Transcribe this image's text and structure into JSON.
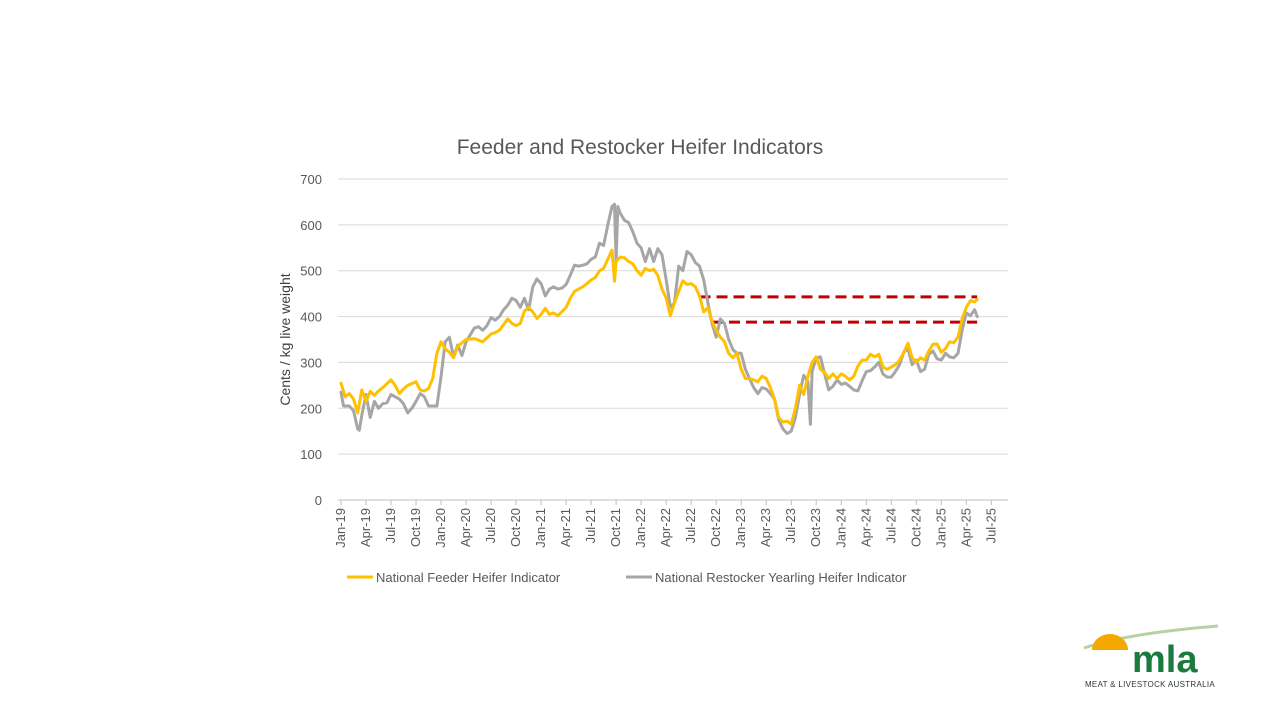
{
  "chart_data": {
    "type": "line",
    "title": "Feeder and Restocker Heifer Indicators",
    "xlabel": "",
    "ylabel": "Cents / kg  live weight",
    "ylim": [
      0,
      700
    ],
    "yticks": [
      0,
      100,
      200,
      300,
      400,
      500,
      600,
      700
    ],
    "x_tick_labels": [
      "Jan-19",
      "Apr-19",
      "Jul-19",
      "Oct-19",
      "Jan-20",
      "Apr-20",
      "Jul-20",
      "Oct-20",
      "Jan-21",
      "Apr-21",
      "Jul-21",
      "Oct-21",
      "Jan-22",
      "Apr-22",
      "Jul-22",
      "Oct-22",
      "Jan-23",
      "Apr-23",
      "Jul-23",
      "Oct-23",
      "Jan-24",
      "Apr-24",
      "Jul-24",
      "Oct-24",
      "Jan-25",
      "Apr-25",
      "Jul-25"
    ],
    "x_range_months": [
      0,
      80
    ],
    "grid": true,
    "legend_position": "bottom",
    "series": [
      {
        "name": "National Feeder Heifer Indicator",
        "color": "#FFC000",
        "points": [
          [
            0,
            255
          ],
          [
            0.5,
            225
          ],
          [
            1,
            232
          ],
          [
            1.5,
            220
          ],
          [
            2,
            190
          ],
          [
            2.5,
            240
          ],
          [
            3,
            215
          ],
          [
            3.5,
            237
          ],
          [
            4,
            228
          ],
          [
            4.5,
            238
          ],
          [
            5,
            245
          ],
          [
            6,
            262
          ],
          [
            6.5,
            250
          ],
          [
            7,
            232
          ],
          [
            7.5,
            242
          ],
          [
            8,
            250
          ],
          [
            9,
            258
          ],
          [
            9.5,
            240
          ],
          [
            10,
            238
          ],
          [
            10.5,
            243
          ],
          [
            11,
            265
          ],
          [
            11.5,
            320
          ],
          [
            12,
            345
          ],
          [
            12.5,
            330
          ],
          [
            13,
            322
          ],
          [
            13.5,
            310
          ],
          [
            14,
            335
          ],
          [
            15,
            350
          ],
          [
            16,
            352
          ],
          [
            17,
            345
          ],
          [
            18,
            362
          ],
          [
            18.5,
            365
          ],
          [
            19,
            370
          ],
          [
            20,
            395
          ],
          [
            20.5,
            385
          ],
          [
            21,
            380
          ],
          [
            21.5,
            385
          ],
          [
            22,
            412
          ],
          [
            22.5,
            420
          ],
          [
            23,
            410
          ],
          [
            23.5,
            396
          ],
          [
            24,
            405
          ],
          [
            24.5,
            418
          ],
          [
            25,
            405
          ],
          [
            25.5,
            408
          ],
          [
            26,
            402
          ],
          [
            27,
            420
          ],
          [
            27.5,
            440
          ],
          [
            28,
            455
          ],
          [
            28.5,
            460
          ],
          [
            29,
            465
          ],
          [
            29.5,
            472
          ],
          [
            30,
            480
          ],
          [
            30.5,
            485
          ],
          [
            31,
            500
          ],
          [
            31.5,
            505
          ],
          [
            32,
            525
          ],
          [
            32.5,
            545
          ],
          [
            32.8,
            477
          ],
          [
            33,
            520
          ],
          [
            33.5,
            530
          ],
          [
            34,
            528
          ],
          [
            34.5,
            520
          ],
          [
            35,
            515
          ],
          [
            35.5,
            500
          ],
          [
            36,
            490
          ],
          [
            36.5,
            505
          ],
          [
            37,
            500
          ],
          [
            37.5,
            503
          ],
          [
            38,
            490
          ],
          [
            38.5,
            460
          ],
          [
            39,
            440
          ],
          [
            39.5,
            402
          ],
          [
            40,
            430
          ],
          [
            40.5,
            455
          ],
          [
            41,
            478
          ],
          [
            41.5,
            470
          ],
          [
            42,
            472
          ],
          [
            42.5,
            465
          ],
          [
            43,
            445
          ],
          [
            43.5,
            410
          ],
          [
            44,
            420
          ],
          [
            44.5,
            390
          ],
          [
            45,
            370
          ],
          [
            45.5,
            355
          ],
          [
            46,
            345
          ],
          [
            46.5,
            320
          ],
          [
            47,
            310
          ],
          [
            47.5,
            320
          ],
          [
            48,
            285
          ],
          [
            48.5,
            265
          ],
          [
            49,
            265
          ],
          [
            49.5,
            262
          ],
          [
            50,
            258
          ],
          [
            50.5,
            270
          ],
          [
            51,
            265
          ],
          [
            51.5,
            245
          ],
          [
            52,
            220
          ],
          [
            52.5,
            180
          ],
          [
            53,
            170
          ],
          [
            53.5,
            172
          ],
          [
            54,
            165
          ],
          [
            54.5,
            200
          ],
          [
            55,
            250
          ],
          [
            55.5,
            230
          ],
          [
            56,
            270
          ],
          [
            56.5,
            300
          ],
          [
            57,
            312
          ],
          [
            57.5,
            285
          ],
          [
            58,
            278
          ],
          [
            58.5,
            265
          ],
          [
            59,
            275
          ],
          [
            59.5,
            265
          ],
          [
            60,
            275
          ],
          [
            60.5,
            270
          ],
          [
            61,
            262
          ],
          [
            61.5,
            270
          ],
          [
            62,
            292
          ],
          [
            62.5,
            305
          ],
          [
            63,
            305
          ],
          [
            63.5,
            318
          ],
          [
            64,
            312
          ],
          [
            64.5,
            318
          ],
          [
            65,
            290
          ],
          [
            65.5,
            285
          ],
          [
            66,
            290
          ],
          [
            66.5,
            295
          ],
          [
            67,
            305
          ],
          [
            67.5,
            322
          ],
          [
            68,
            342
          ],
          [
            68.5,
            310
          ],
          [
            69,
            300
          ],
          [
            69.5,
            310
          ],
          [
            70,
            305
          ],
          [
            70.5,
            325
          ],
          [
            71,
            340
          ],
          [
            71.5,
            340
          ],
          [
            72,
            322
          ],
          [
            72.5,
            330
          ],
          [
            73,
            345
          ],
          [
            73.5,
            343
          ],
          [
            74,
            355
          ],
          [
            74.5,
            395
          ],
          [
            75,
            420
          ],
          [
            75.5,
            435
          ],
          [
            76,
            432
          ],
          [
            76.3,
            437
          ]
        ]
      },
      {
        "name": "National Restocker Yearling Heifer Indicator",
        "color": "#A6A6A6",
        "points": [
          [
            0,
            235
          ],
          [
            0.3,
            205
          ],
          [
            1,
            205
          ],
          [
            1.5,
            195
          ],
          [
            2,
            155
          ],
          [
            2.2,
            152
          ],
          [
            2.5,
            185
          ],
          [
            3,
            230
          ],
          [
            3.5,
            180
          ],
          [
            4,
            215
          ],
          [
            4.5,
            200
          ],
          [
            5,
            210
          ],
          [
            5.5,
            212
          ],
          [
            6,
            230
          ],
          [
            6.5,
            225
          ],
          [
            7,
            220
          ],
          [
            7.5,
            210
          ],
          [
            8,
            190
          ],
          [
            8.5,
            200
          ],
          [
            9,
            215
          ],
          [
            9.5,
            232
          ],
          [
            10,
            225
          ],
          [
            10.5,
            205
          ],
          [
            11,
            205
          ],
          [
            11.5,
            205
          ],
          [
            12,
            270
          ],
          [
            12.5,
            345
          ],
          [
            13,
            355
          ],
          [
            13.5,
            312
          ],
          [
            14,
            338
          ],
          [
            14.5,
            315
          ],
          [
            15,
            345
          ],
          [
            15.5,
            360
          ],
          [
            16,
            375
          ],
          [
            16.5,
            378
          ],
          [
            17,
            370
          ],
          [
            17.5,
            380
          ],
          [
            18,
            398
          ],
          [
            18.5,
            392
          ],
          [
            19,
            400
          ],
          [
            19.5,
            415
          ],
          [
            20,
            425
          ],
          [
            20.5,
            440
          ],
          [
            21,
            435
          ],
          [
            21.5,
            420
          ],
          [
            22,
            440
          ],
          [
            22.5,
            415
          ],
          [
            23,
            465
          ],
          [
            23.5,
            482
          ],
          [
            24,
            472
          ],
          [
            24.5,
            445
          ],
          [
            25,
            460
          ],
          [
            25.5,
            465
          ],
          [
            26,
            460
          ],
          [
            26.5,
            462
          ],
          [
            27,
            470
          ],
          [
            27.5,
            490
          ],
          [
            28,
            512
          ],
          [
            28.5,
            510
          ],
          [
            29,
            512
          ],
          [
            29.5,
            515
          ],
          [
            30,
            525
          ],
          [
            30.5,
            530
          ],
          [
            31,
            560
          ],
          [
            31.5,
            555
          ],
          [
            32,
            600
          ],
          [
            32.5,
            640
          ],
          [
            32.8,
            645
          ],
          [
            33,
            520
          ],
          [
            33.2,
            640
          ],
          [
            33.5,
            625
          ],
          [
            34,
            610
          ],
          [
            34.5,
            605
          ],
          [
            35,
            585
          ],
          [
            35.5,
            560
          ],
          [
            36,
            550
          ],
          [
            36.5,
            520
          ],
          [
            37,
            548
          ],
          [
            37.5,
            520
          ],
          [
            38,
            548
          ],
          [
            38.5,
            535
          ],
          [
            39,
            480
          ],
          [
            39.5,
            420
          ],
          [
            40,
            430
          ],
          [
            40.5,
            510
          ],
          [
            41,
            500
          ],
          [
            41.5,
            542
          ],
          [
            42,
            535
          ],
          [
            42.5,
            518
          ],
          [
            43,
            510
          ],
          [
            43.5,
            480
          ],
          [
            44,
            430
          ],
          [
            44.5,
            385
          ],
          [
            45,
            355
          ],
          [
            45.5,
            395
          ],
          [
            46,
            385
          ],
          [
            46.5,
            350
          ],
          [
            47,
            328
          ],
          [
            47.5,
            320
          ],
          [
            48,
            320
          ],
          [
            48.5,
            285
          ],
          [
            49,
            265
          ],
          [
            49.5,
            245
          ],
          [
            50,
            232
          ],
          [
            50.5,
            245
          ],
          [
            51,
            242
          ],
          [
            51.5,
            232
          ],
          [
            52,
            220
          ],
          [
            52.5,
            175
          ],
          [
            53,
            155
          ],
          [
            53.5,
            145
          ],
          [
            54,
            150
          ],
          [
            54.5,
            180
          ],
          [
            55,
            230
          ],
          [
            55.5,
            272
          ],
          [
            56,
            258
          ],
          [
            56.3,
            165
          ],
          [
            56.5,
            280
          ],
          [
            57,
            310
          ],
          [
            57.5,
            312
          ],
          [
            58,
            275
          ],
          [
            58.5,
            240
          ],
          [
            59,
            248
          ],
          [
            59.5,
            262
          ],
          [
            60,
            252
          ],
          [
            60.5,
            255
          ],
          [
            61,
            248
          ],
          [
            61.5,
            240
          ],
          [
            62,
            238
          ],
          [
            62.5,
            260
          ],
          [
            63,
            280
          ],
          [
            63.5,
            282
          ],
          [
            64,
            290
          ],
          [
            64.5,
            300
          ],
          [
            65,
            275
          ],
          [
            65.5,
            268
          ],
          [
            66,
            268
          ],
          [
            66.5,
            280
          ],
          [
            67,
            295
          ],
          [
            67.5,
            322
          ],
          [
            68,
            330
          ],
          [
            68.5,
            295
          ],
          [
            69,
            305
          ],
          [
            69.5,
            280
          ],
          [
            70,
            285
          ],
          [
            70.5,
            318
          ],
          [
            71,
            325
          ],
          [
            71.5,
            308
          ],
          [
            72,
            305
          ],
          [
            72.5,
            320
          ],
          [
            73,
            312
          ],
          [
            73.5,
            310
          ],
          [
            74,
            320
          ],
          [
            74.5,
            370
          ],
          [
            75,
            408
          ],
          [
            75.5,
            402
          ],
          [
            76,
            415
          ],
          [
            76.3,
            400
          ]
        ]
      }
    ],
    "annotations": [
      {
        "type": "reference-line",
        "value": 443,
        "x_from": 43,
        "x_to": 76.3,
        "style": "dashed",
        "color": "#C00000"
      },
      {
        "type": "reference-line",
        "value": 388,
        "x_from": 44.5,
        "x_to": 76.3,
        "style": "dashed",
        "color": "#C00000"
      }
    ]
  },
  "logo": {
    "wordmark": "mla",
    "tagline": "MEAT & LIVESTOCK AUSTRALIA",
    "colors": {
      "sun": "#F5A800",
      "brand": "#1B7A3E",
      "swoosh": "#B5D3A0"
    }
  }
}
